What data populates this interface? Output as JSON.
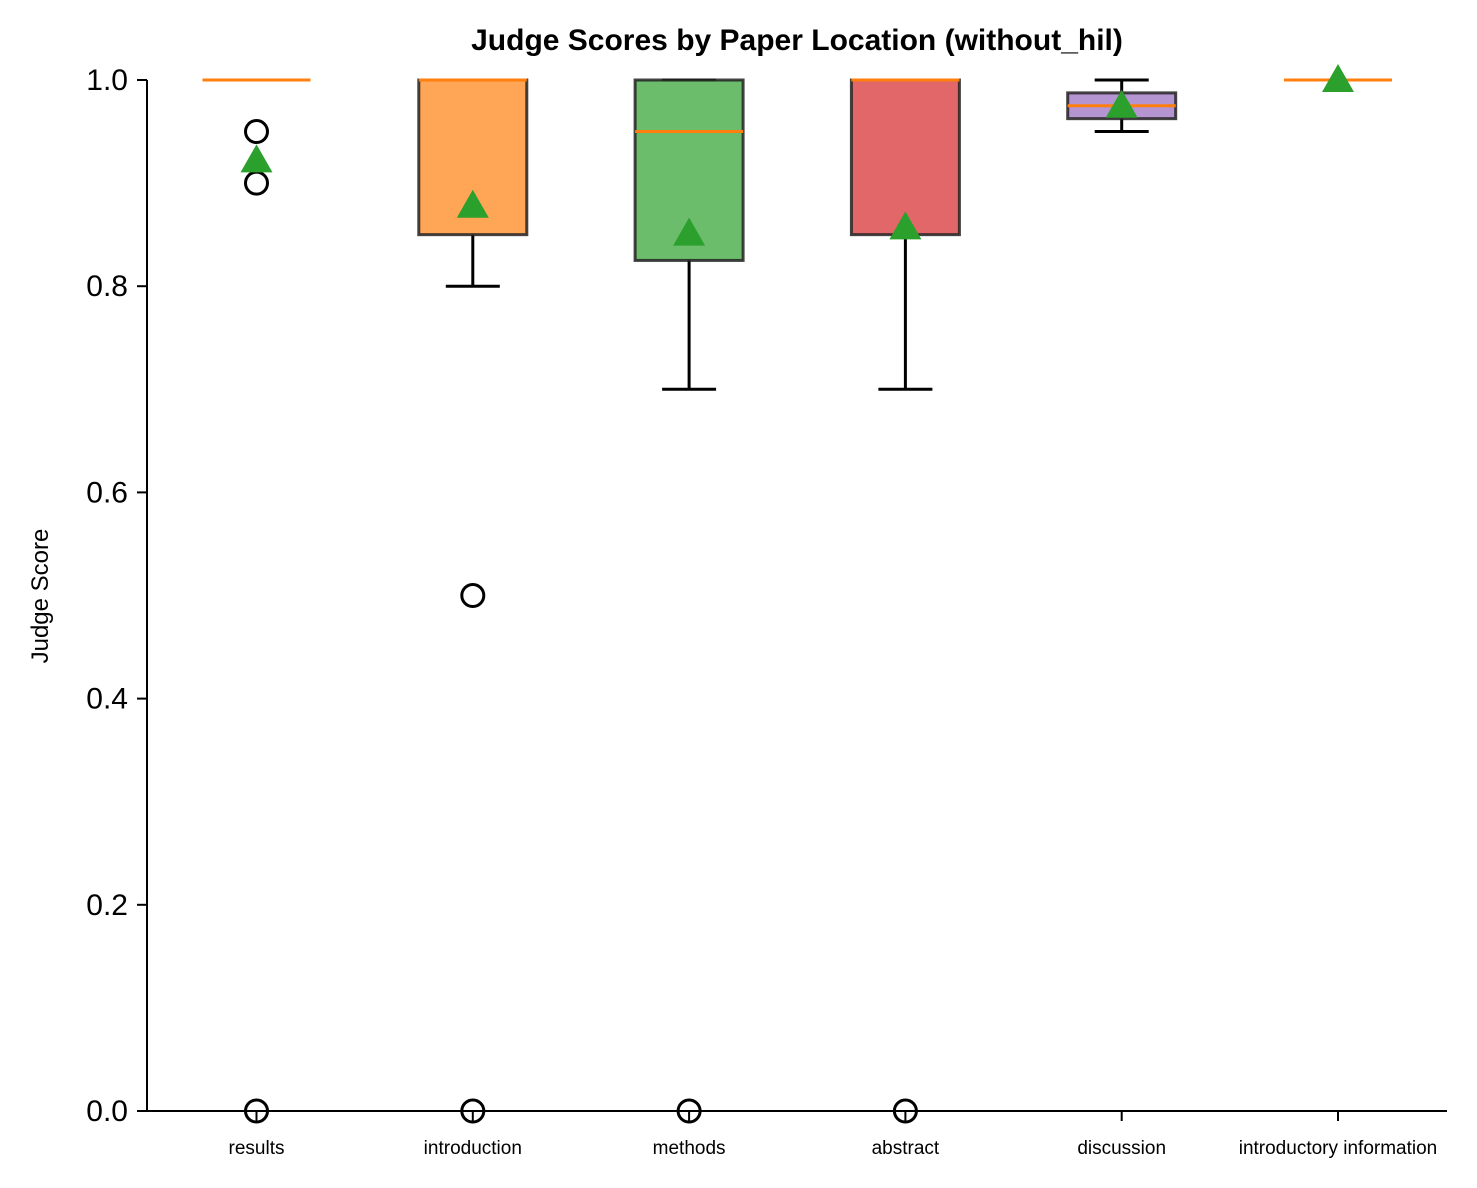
{
  "chart_data": {
    "type": "box",
    "title": "Judge Scores by Paper Location (without_hil)",
    "xlabel": "",
    "ylabel": "Judge Score",
    "ylim": [
      0,
      1
    ],
    "yticks": [
      "0.0",
      "0.2",
      "0.4",
      "0.6",
      "0.8",
      "1.0"
    ],
    "grid": false,
    "legend": "none",
    "categories": [
      "results",
      "introduction",
      "methods",
      "abstract",
      "discussion",
      "introductory information"
    ],
    "boxes": [
      {
        "category": "results",
        "q1": 1.0,
        "median": 1.0,
        "q3": 1.0,
        "whisker_low": 1.0,
        "whisker_high": 1.0,
        "mean": 0.922,
        "outliers": [
          0.95,
          0.9,
          0.0
        ],
        "color": "#1f77b4"
      },
      {
        "category": "introduction",
        "q1": 0.85,
        "median": 1.0,
        "q3": 1.0,
        "whisker_low": 0.8,
        "whisker_high": 1.0,
        "mean": 0.878,
        "outliers": [
          0.5,
          0.0
        ],
        "color": "#ff7f0e"
      },
      {
        "category": "methods",
        "q1": 0.825,
        "median": 0.95,
        "q3": 1.0,
        "whisker_low": 0.7,
        "whisker_high": 1.0,
        "mean": 0.851,
        "outliers": [
          0.0
        ],
        "color": "#2ca02c"
      },
      {
        "category": "abstract",
        "q1": 0.85,
        "median": 1.0,
        "q3": 1.0,
        "whisker_low": 0.7,
        "whisker_high": 1.0,
        "mean": 0.857,
        "outliers": [
          0.0
        ],
        "color": "#d62728"
      },
      {
        "category": "discussion",
        "q1": 0.9625,
        "median": 0.975,
        "q3": 0.9875,
        "whisker_low": 0.95,
        "whisker_high": 1.0,
        "mean": 0.975,
        "outliers": [],
        "color": "#9467bd"
      },
      {
        "category": "introductory information",
        "q1": 1.0,
        "median": 1.0,
        "q3": 1.0,
        "whisker_low": 1.0,
        "whisker_high": 1.0,
        "mean": 1.0,
        "outliers": [],
        "color": "#8c564b"
      }
    ],
    "median_color": "#ff7f0e",
    "mean_color": "#2ca02c"
  }
}
